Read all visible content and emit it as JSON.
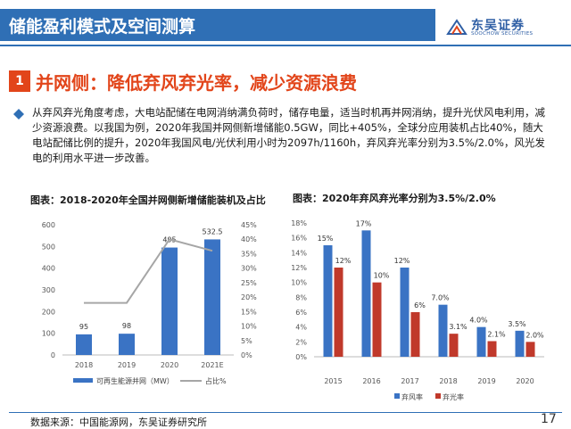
{
  "header": {
    "title": "储能盈利模式及空间测算",
    "logo_cn": "东吴证券",
    "logo_en": "SOOCHOW SECURITIES",
    "brand_color": "#2f6fb5"
  },
  "section": {
    "number": "1",
    "title": "并网侧：降低弃风弃光率，减少资源浪费",
    "accent_color": "#e2451a"
  },
  "body_text": "从弃风弃光角度考虑，大电站配储在电网消纳满负荷时，储存电量，适当时机再并网消纳，提升光伏风电利用，减少资源浪费。以我国为例，2020年我国并网侧新增储能0.5GW，同比+405%，全球分应用装机占比40%，随大电站配储比例的提升，2020年我国风电/光伏利用小时为2097h/1160h，弃风弃光率分别为3.5%/2.0%，风光发电的利用水平进一步改善。",
  "chart_data": [
    {
      "type": "bar",
      "title": "图表：2018-2020年全国并网侧新增储能装机及占比",
      "categories": [
        "2018",
        "2019",
        "2020",
        "2021E"
      ],
      "series": [
        {
          "name": "可再生能源并网（MW）",
          "values": [
            95,
            98,
            495,
            532.5
          ],
          "color": "#3a73c4",
          "axis": "left"
        },
        {
          "name": "占比%",
          "values": [
            0.18,
            0.18,
            0.4,
            0.36
          ],
          "color": "#a6a6a6",
          "axis": "right",
          "kind": "line"
        }
      ],
      "data_labels": [
        "95",
        "98",
        "495",
        "532.5"
      ],
      "ylim_left": [
        0,
        600
      ],
      "yticks_left": [
        "0",
        "100",
        "200",
        "300",
        "400",
        "500",
        "600"
      ],
      "ylim_right": [
        0,
        0.45
      ],
      "yticks_right": [
        "0%",
        "5%",
        "10%",
        "15%",
        "20%",
        "25%",
        "30%",
        "35%",
        "40%",
        "45%"
      ],
      "legend": "bottom"
    },
    {
      "type": "bar",
      "title": "图表：2020年弃风弃光率分别为3.5%/2.0%",
      "categories": [
        "2015",
        "2016",
        "2017",
        "2018",
        "2019",
        "2020"
      ],
      "series": [
        {
          "name": "弃风率",
          "values": [
            15,
            17,
            12,
            7.0,
            4.0,
            3.5
          ],
          "labels": [
            "15%",
            "17%",
            "12%",
            "7.0%",
            "4.0%",
            "3.5%"
          ],
          "color": "#3a73c4"
        },
        {
          "name": "弃光率",
          "values": [
            12,
            10,
            6,
            3.1,
            2.1,
            2.0
          ],
          "labels": [
            "12%",
            "10%",
            "6%",
            "3.1%",
            "2.1%",
            "2.0%"
          ],
          "color": "#c0392b"
        }
      ],
      "ylim": [
        0,
        18
      ],
      "yticks": [
        "0%",
        "2%",
        "4%",
        "6%",
        "8%",
        "10%",
        "12%",
        "14%",
        "16%",
        "18%"
      ],
      "legend": "bottom"
    }
  ],
  "footer": {
    "source": "数据来源：中国能源网，东吴证券研究所",
    "page": "17"
  }
}
